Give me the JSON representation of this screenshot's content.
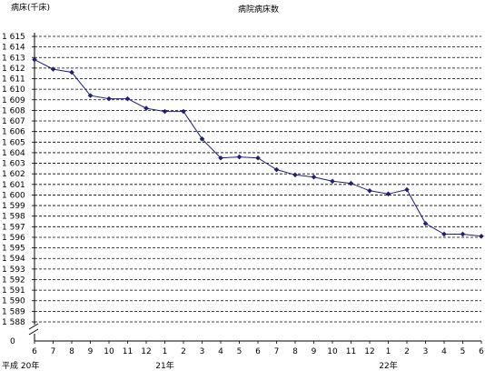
{
  "chart_data": {
    "type": "line",
    "title": "病院病床数",
    "ylabel": "病床(千床)",
    "ylim": [
      1588,
      1615
    ],
    "yticks": [
      "1 615",
      "1 614",
      "1 613",
      "1 612",
      "1 611",
      "1 610",
      "1 609",
      "1 608",
      "1 607",
      "1 606",
      "1 605",
      "1 604",
      "1 603",
      "1 602",
      "1 601",
      "1 600",
      "1 599",
      "1 598",
      "1 597",
      "1 596",
      "1 595",
      "1 594",
      "1 593",
      "1 592",
      "1 591",
      "1 590",
      "1 589",
      "1 588"
    ],
    "ytick_values": [
      1615,
      1614,
      1613,
      1612,
      1611,
      1610,
      1609,
      1608,
      1607,
      1606,
      1605,
      1604,
      1603,
      1602,
      1601,
      1600,
      1599,
      1598,
      1597,
      1596,
      1595,
      1594,
      1593,
      1592,
      1591,
      1590,
      1589,
      1588
    ],
    "y_zero_label": "0",
    "categories": [
      "6",
      "7",
      "8",
      "9",
      "10",
      "11",
      "12",
      "1",
      "2",
      "3",
      "4",
      "5",
      "6",
      "7",
      "8",
      "9",
      "10",
      "11",
      "12",
      "1",
      "2",
      "3",
      "4",
      "5",
      "6"
    ],
    "year_labels": [
      {
        "label": "平成 20年",
        "index": 0
      },
      {
        "label": "21年",
        "index": 7
      },
      {
        "label": "22年",
        "index": 19
      }
    ],
    "grid": "horizontal-dashed",
    "line_color": "#1f1f7a",
    "series": [
      {
        "values": [
          1612.8,
          1611.9,
          1611.6,
          1609.4,
          1609.1,
          1609.1,
          1608.2,
          1607.9,
          1607.9,
          1605.3,
          1603.5,
          1603.6,
          1603.5,
          1602.4,
          1601.9,
          1601.7,
          1601.3,
          1601.1,
          1600.4,
          1600.1,
          1600.5,
          1597.3,
          1596.3,
          1596.3,
          1596.1
        ]
      }
    ]
  }
}
